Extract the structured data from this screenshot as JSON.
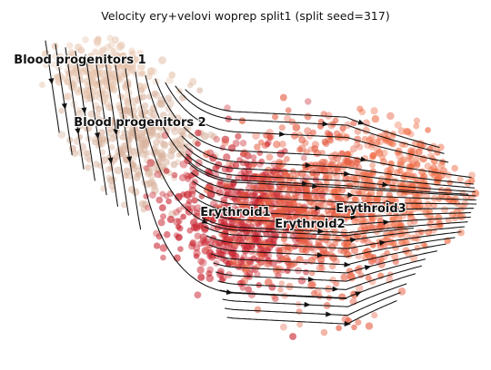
{
  "chart_data": {
    "type": "scatter",
    "subtype": "velocity-streamplot-embedding",
    "title": "Velocity ery+velovi woprep split1 (split seed=317)",
    "xlabel": "",
    "ylabel": "",
    "axes_visible": false,
    "grid": false,
    "legend": "none",
    "clusters": [
      {
        "name": "Blood progenitors 1",
        "color": "#e6c4ad"
      },
      {
        "name": "Blood progenitors 2",
        "color": "#d9b49f"
      },
      {
        "name": "Erythroid1",
        "color": "#c9242f"
      },
      {
        "name": "Erythroid2",
        "color": "#e55a3f"
      },
      {
        "name": "Erythroid3",
        "color": "#ef6a43"
      }
    ],
    "stream_color": "#111111",
    "flow_direction": "progenitors (top-left) to Erythroid3 (right); downward in the progenitor region, rightward in the erythroid region"
  }
}
